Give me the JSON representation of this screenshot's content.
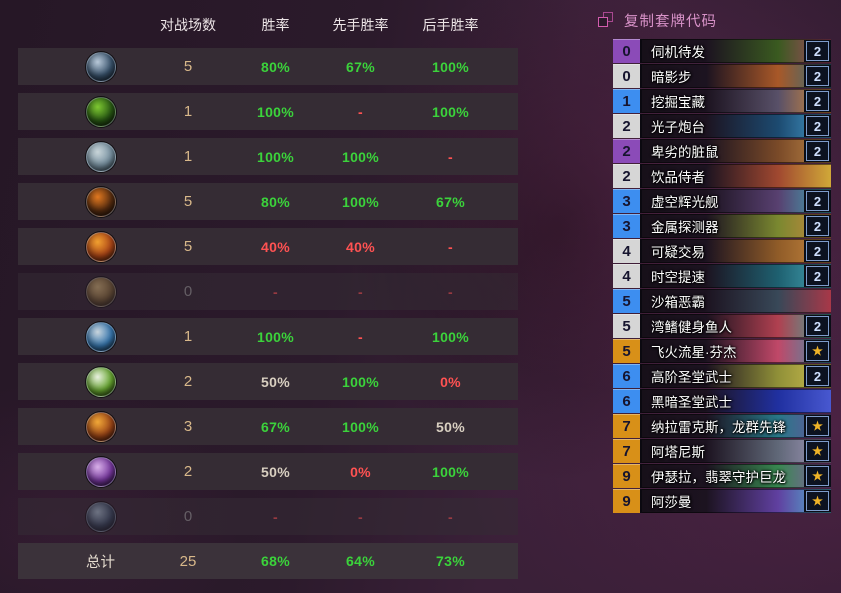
{
  "colors": {
    "rarity-common": "#d6d6d6",
    "rarity-rare": "#3d8ef0",
    "rarity-epic": "#8b4bb8",
    "rarity-legendary": "#d89018",
    "win-green": "#3bd33b",
    "loss-red": "#ff5252",
    "neutral-tan": "#d8cfc0",
    "count-tan": "#d8b88a",
    "copy-pink": "#d892c8",
    "star-gold": "#f0b428",
    "badge-blue": "#cfe0ff"
  },
  "stats_table": {
    "headers": [
      "对战场数",
      "胜率",
      "先手胜率",
      "后手胜率"
    ],
    "rows": [
      {
        "cls_id": "death-knight",
        "icon": [
          "#b8c8d8",
          "#3a546e",
          "#121c28"
        ],
        "games": "5",
        "win": "80%",
        "win_cls": "green",
        "first": "67%",
        "first_cls": "green",
        "second": "100%",
        "second_cls": "green",
        "dim": false
      },
      {
        "cls_id": "demon-hunter",
        "icon": [
          "#7ec832",
          "#2a5c14",
          "#0a1406"
        ],
        "games": "1",
        "win": "100%",
        "win_cls": "green",
        "first": "-",
        "first_cls": "red",
        "second": "100%",
        "second_cls": "green",
        "dim": false
      },
      {
        "cls_id": "druid",
        "icon": [
          "#c8d4d8",
          "#7a94a4",
          "#2a3a44"
        ],
        "games": "1",
        "win": "100%",
        "win_cls": "green",
        "first": "100%",
        "first_cls": "green",
        "second": "-",
        "second_cls": "red",
        "dim": false
      },
      {
        "cls_id": "hunter",
        "icon": [
          "#e07820",
          "#5a2e10",
          "#140a06"
        ],
        "games": "5",
        "win": "80%",
        "win_cls": "green",
        "first": "100%",
        "first_cls": "green",
        "second": "67%",
        "second_cls": "green",
        "dim": false
      },
      {
        "cls_id": "mage",
        "icon": [
          "#f0a030",
          "#b04818",
          "#3a1808"
        ],
        "games": "5",
        "win": "40%",
        "win_cls": "red",
        "first": "40%",
        "first_cls": "red",
        "second": "-",
        "second_cls": "red",
        "dim": false
      },
      {
        "cls_id": "paladin",
        "icon": [
          "#d8b878",
          "#8a6c38",
          "#2e2410"
        ],
        "games": "0",
        "win": "-",
        "win_cls": "red",
        "first": "-",
        "first_cls": "red",
        "second": "-",
        "second_cls": "red",
        "dim": true
      },
      {
        "cls_id": "priest",
        "icon": [
          "#c8d4dc",
          "#3878b0",
          "#102030"
        ],
        "games": "1",
        "win": "100%",
        "win_cls": "green",
        "first": "-",
        "first_cls": "red",
        "second": "100%",
        "second_cls": "green",
        "dim": false
      },
      {
        "cls_id": "rogue",
        "icon": [
          "#e8f0e0",
          "#68a830",
          "#1a3008"
        ],
        "games": "2",
        "win": "50%",
        "win_cls": "plain",
        "first": "100%",
        "first_cls": "green",
        "second": "0%",
        "second_cls": "red",
        "dim": false
      },
      {
        "cls_id": "shaman",
        "icon": [
          "#f0a838",
          "#a04818",
          "#300c08"
        ],
        "games": "3",
        "win": "67%",
        "win_cls": "green",
        "first": "100%",
        "first_cls": "green",
        "second": "50%",
        "second_cls": "plain",
        "dim": false
      },
      {
        "cls_id": "warlock",
        "icon": [
          "#d8b0e8",
          "#7838a0",
          "#200a30"
        ],
        "games": "2",
        "win": "50%",
        "win_cls": "plain",
        "first": "0%",
        "first_cls": "red",
        "second": "100%",
        "second_cls": "green",
        "dim": false
      },
      {
        "cls_id": "warrior",
        "icon": [
          "#a8c0d0",
          "#38506a",
          "#0a1420"
        ],
        "games": "0",
        "win": "-",
        "win_cls": "red",
        "first": "-",
        "first_cls": "red",
        "second": "-",
        "second_cls": "red",
        "dim": true
      }
    ],
    "total": {
      "label": "总计",
      "games": "25",
      "win": "68%",
      "first": "64%",
      "second": "73%"
    }
  },
  "deck": {
    "copy_label": "复制套牌代码",
    "cards": [
      {
        "cost": "0",
        "name": "伺机待发",
        "rarity": "epic",
        "count": "2",
        "art": [
          "#3a5a20",
          "#b04868"
        ]
      },
      {
        "cost": "0",
        "name": "暗影步",
        "rarity": "common",
        "count": "2",
        "art": [
          "#a85828",
          "#2a7080"
        ]
      },
      {
        "cost": "1",
        "name": "挖掘宝藏",
        "rarity": "rare",
        "count": "2",
        "art": [
          "#585068",
          "#e09038"
        ]
      },
      {
        "cost": "2",
        "name": "光子炮台",
        "rarity": "common",
        "count": "2",
        "art": [
          "#1c4a70",
          "#48a0d0"
        ]
      },
      {
        "cost": "2",
        "name": "卑劣的脏鼠",
        "rarity": "epic",
        "count": "2",
        "art": [
          "#7a4a28",
          "#c08848"
        ]
      },
      {
        "cost": "2",
        "name": "饮品侍者",
        "rarity": "common",
        "count": "",
        "art": [
          "#a04830",
          "#d0a838"
        ]
      },
      {
        "cost": "3",
        "name": "虚空辉光舰",
        "rarity": "rare",
        "count": "2",
        "art": [
          "#584070",
          "#40b0b8"
        ]
      },
      {
        "cost": "3",
        "name": "金属探测器",
        "rarity": "rare",
        "count": "2",
        "art": [
          "#7a8830",
          "#d08840"
        ]
      },
      {
        "cost": "4",
        "name": "可疑交易",
        "rarity": "common",
        "count": "2",
        "art": [
          "#905c28",
          "#c88840"
        ]
      },
      {
        "cost": "4",
        "name": "时空提速",
        "rarity": "common",
        "count": "2",
        "art": [
          "#1e6070",
          "#48a8b8"
        ]
      },
      {
        "cost": "5",
        "name": "沙箱恶霸",
        "rarity": "rare",
        "count": "",
        "art": [
          "#384858",
          "#a83848"
        ]
      },
      {
        "cost": "5",
        "name": "湾鳍健身鱼人",
        "rarity": "common",
        "count": "2",
        "art": [
          "#b04050",
          "#40b0a0"
        ]
      },
      {
        "cost": "5",
        "name": "飞火流星·芬杰",
        "rarity": "legendary",
        "count": "star",
        "art": [
          "#c04868",
          "#3898b0"
        ]
      },
      {
        "cost": "6",
        "name": "高阶圣堂武士",
        "rarity": "rare",
        "count": "2",
        "art": [
          "#909038",
          "#d0c050"
        ]
      },
      {
        "cost": "6",
        "name": "黑暗圣堂武士",
        "rarity": "rare",
        "count": "",
        "art": [
          "#2030a0",
          "#4858d0"
        ]
      },
      {
        "cost": "7",
        "name": "纳拉雷克斯，龙群先锋",
        "rarity": "legendary",
        "count": "star",
        "art": [
          "#287888",
          "#7050a0"
        ]
      },
      {
        "cost": "7",
        "name": "阿塔尼斯",
        "rarity": "legendary",
        "count": "star",
        "art": [
          "#606878",
          "#a89cc0"
        ]
      },
      {
        "cost": "9",
        "name": "伊瑟拉，翡翠守护巨龙",
        "rarity": "legendary",
        "count": "star",
        "art": [
          "#388850",
          "#9058b0"
        ]
      },
      {
        "cost": "9",
        "name": "阿莎曼",
        "rarity": "legendary",
        "count": "star",
        "art": [
          "#6040a0",
          "#50c0d8"
        ]
      }
    ],
    "star_glyph": "★"
  }
}
